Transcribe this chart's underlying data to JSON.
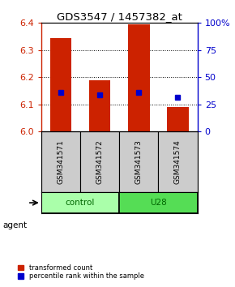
{
  "title": "GDS3547 / 1457382_at",
  "samples": [
    "GSM341571",
    "GSM341572",
    "GSM341573",
    "GSM341574"
  ],
  "bar_tops": [
    6.345,
    6.19,
    6.395,
    6.09
  ],
  "percentile_values": [
    6.145,
    6.135,
    6.145,
    6.125
  ],
  "ylim": [
    6.0,
    6.4
  ],
  "yticks": [
    6.0,
    6.1,
    6.2,
    6.3,
    6.4
  ],
  "right_yticks": [
    0,
    25,
    50,
    75,
    100
  ],
  "bar_color": "#cc2200",
  "percentile_color": "#0000cc",
  "control_color": "#aaffaa",
  "u28_color": "#55dd55",
  "group_label_color": "#006600",
  "left_tick_color": "#cc2200",
  "right_tick_color": "#0000cc",
  "background_color": "#ffffff",
  "sample_box_color": "#cccccc",
  "bar_width": 0.55
}
